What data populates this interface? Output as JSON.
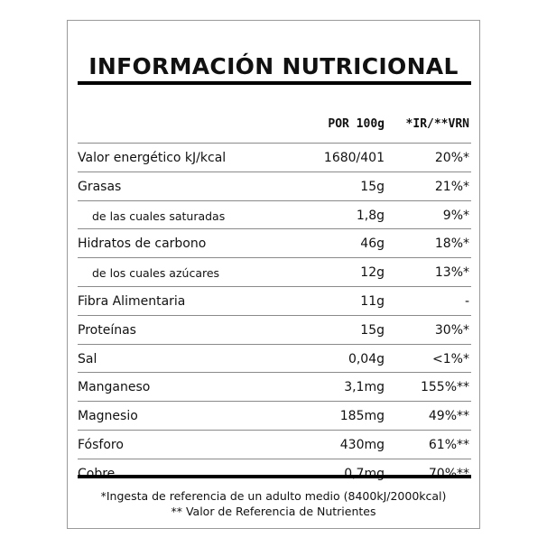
{
  "title": "INFORMACIÓN NUTRICIONAL",
  "header": {
    "per100": "POR 100g",
    "ref": "*IR/**VRN"
  },
  "rows": [
    {
      "label": "Valor energético kJ/kcal",
      "value": "1680/401",
      "pct": "20%*",
      "sub": false
    },
    {
      "label": "Grasas",
      "value": "15g",
      "pct": "21%*",
      "sub": false
    },
    {
      "label": "de las cuales saturadas",
      "value": "1,8g",
      "pct": "9%*",
      "sub": true
    },
    {
      "label": "Hidratos de carbono",
      "value": "46g",
      "pct": "18%*",
      "sub": false
    },
    {
      "label": "de los cuales azúcares",
      "value": "12g",
      "pct": "13%*",
      "sub": true
    },
    {
      "label": "Fibra Alimentaria",
      "value": "11g",
      "pct": "-",
      "sub": false
    },
    {
      "label": "Proteínas",
      "value": "15g",
      "pct": "30%*",
      "sub": false
    },
    {
      "label": "Sal",
      "value": "0,04g",
      "pct": "<1%*",
      "sub": false
    },
    {
      "label": "Manganeso",
      "value": "3,1mg",
      "pct": "155%**",
      "sub": false
    },
    {
      "label": "Magnesio",
      "value": "185mg",
      "pct": "49%**",
      "sub": false
    },
    {
      "label": "Fósforo",
      "value": "430mg",
      "pct": "61%**",
      "sub": false
    },
    {
      "label": "Cobre",
      "value": "0,7mg",
      "pct": "70%**",
      "sub": false
    }
  ],
  "footnotes": [
    "*Ingesta de referencia de un adulto medio (8400kJ/2000kcal)",
    "** Valor de Referencia de Nutrientes"
  ]
}
